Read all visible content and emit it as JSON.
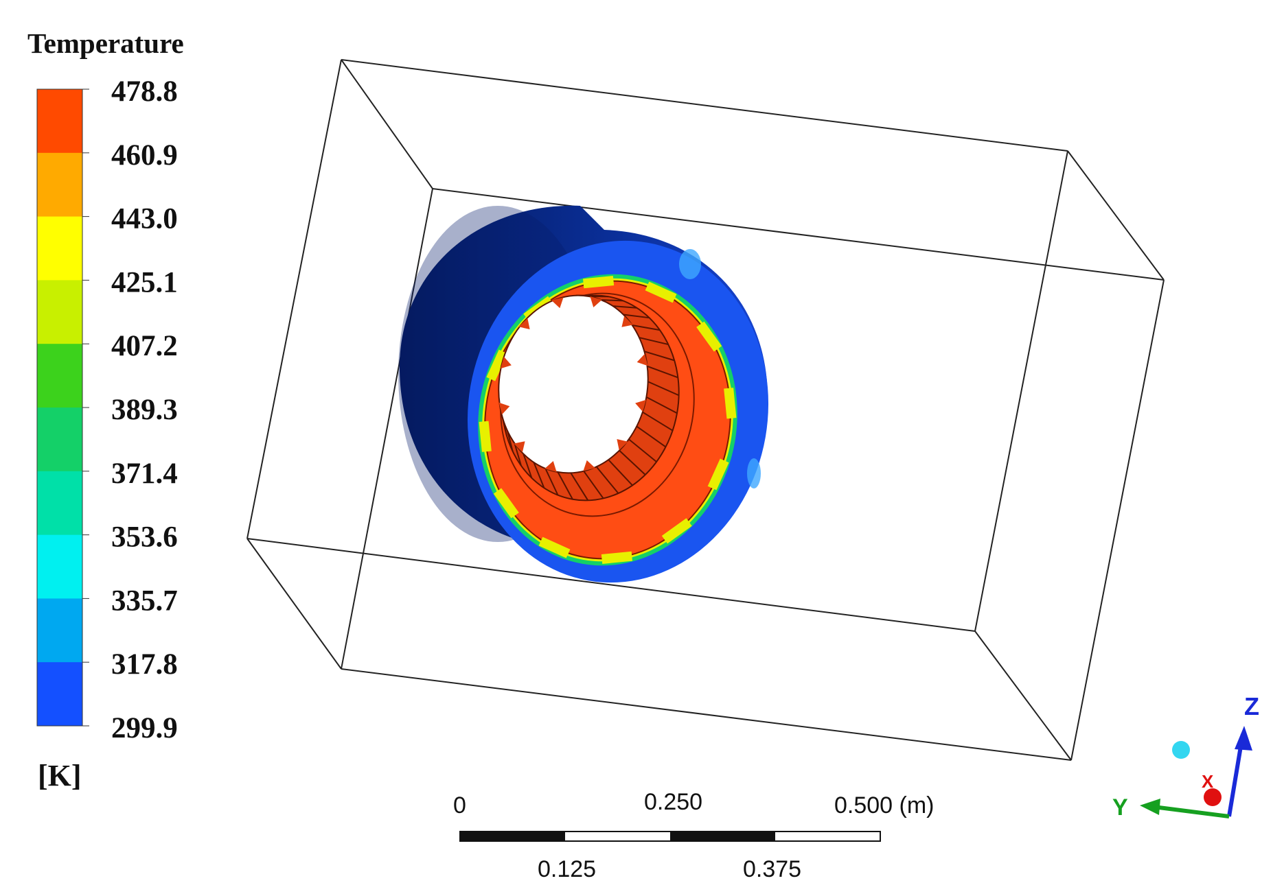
{
  "legend": {
    "title": "Temperature",
    "unit": "[K]",
    "ticks": [
      "478.8",
      "460.9",
      "443.0",
      "425.1",
      "407.2",
      "389.3",
      "371.4",
      "353.6",
      "335.7",
      "317.8",
      "299.9"
    ],
    "band_colors": [
      "#ff4a00",
      "#ffaa00",
      "#ffff00",
      "#c8f000",
      "#3cd21c",
      "#14d068",
      "#00e0a8",
      "#00f0f0",
      "#00a8f0",
      "#1450ff"
    ]
  },
  "scale_bar": {
    "top_labels": [
      "0",
      "0.250",
      "0.500 (m)"
    ],
    "bottom_labels": [
      "0.125",
      "0.375"
    ]
  },
  "triad": {
    "z_label": "Z",
    "y_label": "Y",
    "x_label": "X"
  },
  "colors": {
    "housing_dark": "#0a2a80",
    "housing_face": "#1a55f0",
    "core_hot": "#ff4d14",
    "edge_outline": "#000000"
  }
}
